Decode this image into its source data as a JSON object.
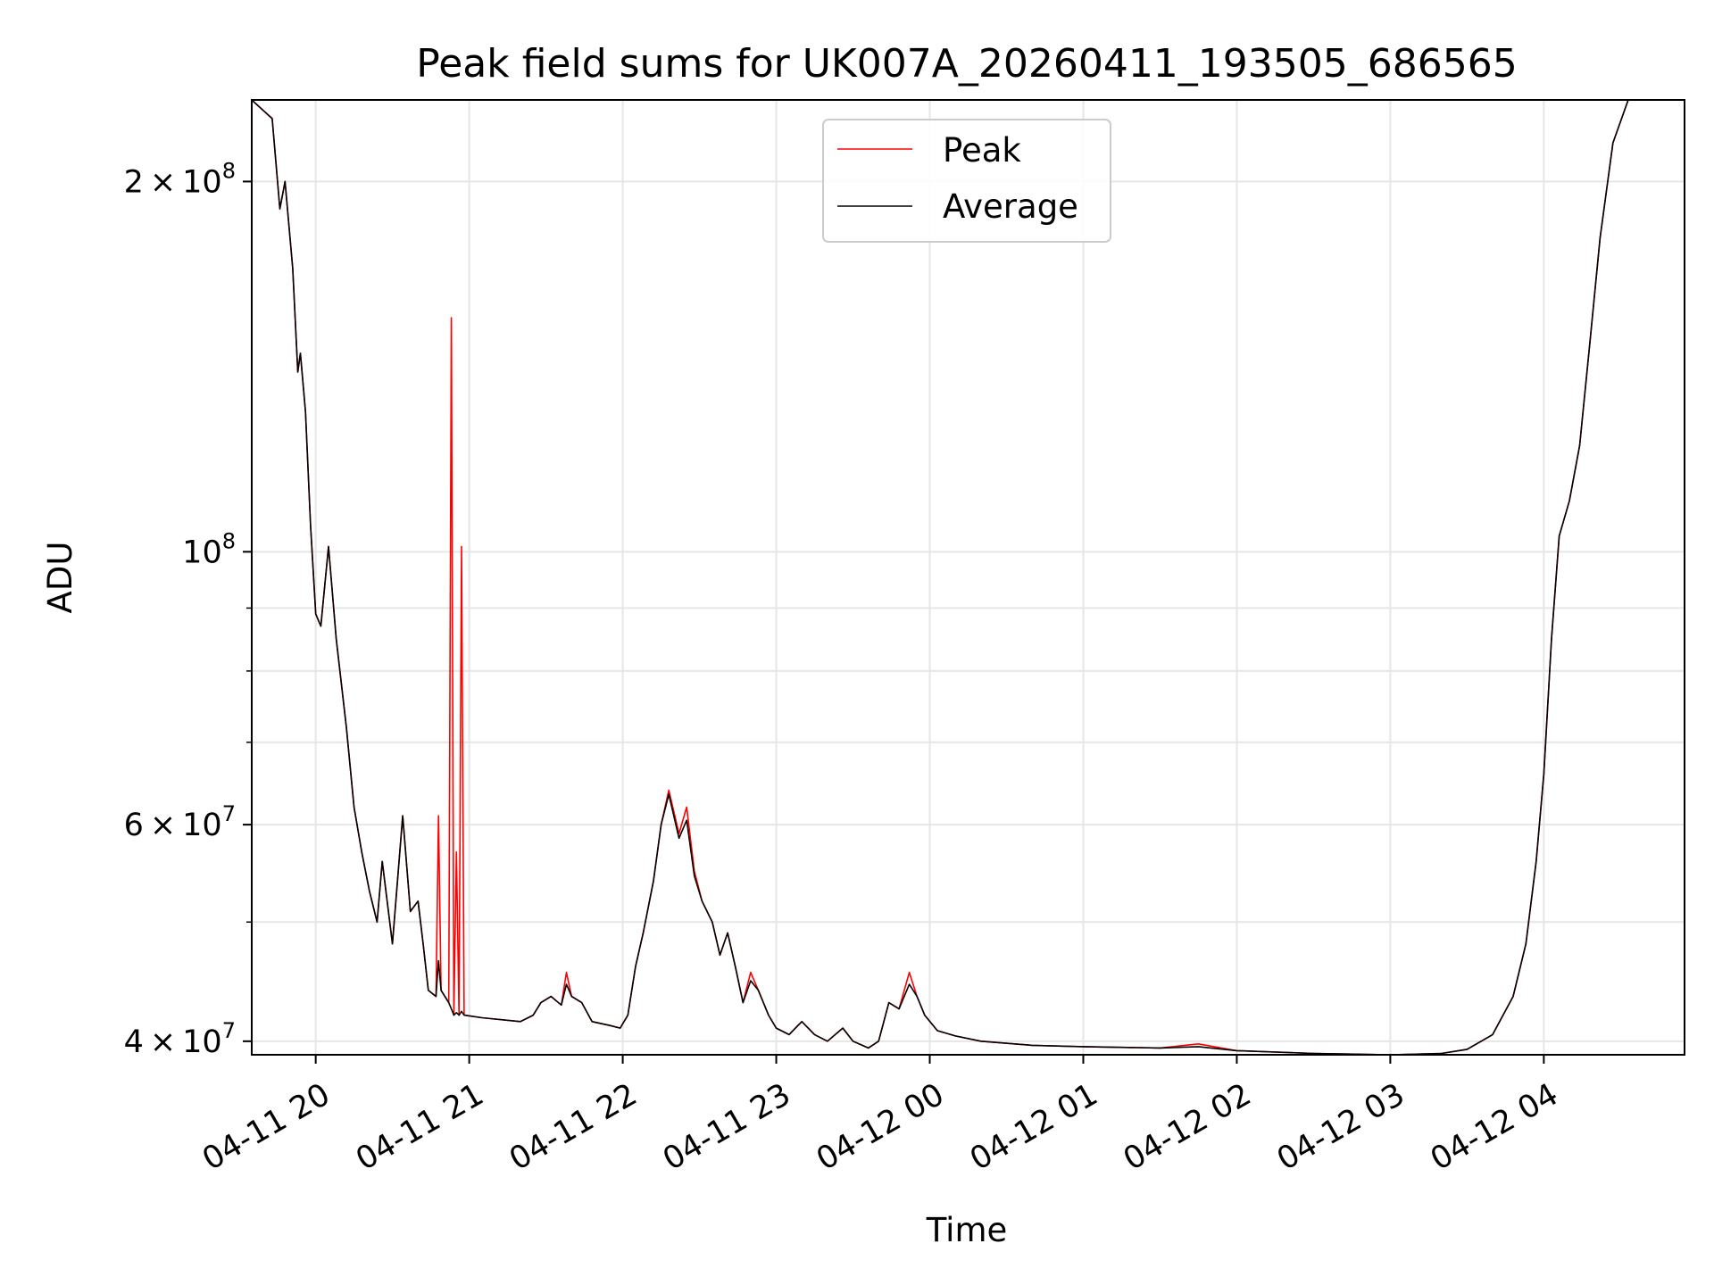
{
  "chart_data": {
    "type": "line",
    "title": "Peak field sums for UK007A_20260411_193505_686565",
    "xlabel": "Time",
    "ylabel": "ADU",
    "y_scale": "log",
    "xlim": [
      "2026-04-11 19:35",
      "2026-04-12 04:55"
    ],
    "ylim": [
      39000000,
      233000000
    ],
    "grid": true,
    "legend_position": "upper center",
    "x_ticks": [
      {
        "t": "2026-04-11 20:00",
        "label": "04-11 20"
      },
      {
        "t": "2026-04-11 21:00",
        "label": "04-11 21"
      },
      {
        "t": "2026-04-11 22:00",
        "label": "04-11 22"
      },
      {
        "t": "2026-04-11 23:00",
        "label": "04-11 23"
      },
      {
        "t": "2026-04-12 00:00",
        "label": "04-12 00"
      },
      {
        "t": "2026-04-12 01:00",
        "label": "04-12 01"
      },
      {
        "t": "2026-04-12 02:00",
        "label": "04-12 02"
      },
      {
        "t": "2026-04-12 03:00",
        "label": "04-12 03"
      },
      {
        "t": "2026-04-12 04:00",
        "label": "04-12 04"
      }
    ],
    "y_major_ticks": [
      {
        "value": 40000000,
        "mantissa": "4",
        "exponent": "7"
      },
      {
        "value": 60000000,
        "mantissa": "6",
        "exponent": "7"
      },
      {
        "value": 100000000,
        "mantissa": "",
        "exponent": "8"
      },
      {
        "value": 200000000,
        "mantissa": "2",
        "exponent": "8"
      }
    ],
    "y_minor_ticks": [
      50000000,
      70000000,
      80000000,
      90000000
    ],
    "series": [
      {
        "name": "Peak",
        "color": "#ff0000",
        "points": [
          [
            "2026-04-11 19:35",
            233000000
          ],
          [
            "2026-04-11 19:43",
            225000000
          ],
          [
            "2026-04-11 19:46",
            190000000
          ],
          [
            "2026-04-11 19:48",
            200000000
          ],
          [
            "2026-04-11 19:51",
            170000000
          ],
          [
            "2026-04-11 19:53",
            140000000
          ],
          [
            "2026-04-11 19:54",
            145000000
          ],
          [
            "2026-04-11 19:56",
            130000000
          ],
          [
            "2026-04-11 19:58",
            105000000
          ],
          [
            "2026-04-11 20:00",
            89000000
          ],
          [
            "2026-04-11 20:02",
            87000000
          ],
          [
            "2026-04-11 20:05",
            101000000
          ],
          [
            "2026-04-11 20:08",
            85000000
          ],
          [
            "2026-04-11 20:12",
            72000000
          ],
          [
            "2026-04-11 20:15",
            62000000
          ],
          [
            "2026-04-11 20:18",
            57000000
          ],
          [
            "2026-04-11 20:21",
            53000000
          ],
          [
            "2026-04-11 20:24",
            50000000
          ],
          [
            "2026-04-11 20:26",
            56000000
          ],
          [
            "2026-04-11 20:30",
            48000000
          ],
          [
            "2026-04-11 20:34",
            61000000
          ],
          [
            "2026-04-11 20:37",
            51000000
          ],
          [
            "2026-04-11 20:40",
            52000000
          ],
          [
            "2026-04-11 20:42",
            48000000
          ],
          [
            "2026-04-11 20:44",
            44000000
          ],
          [
            "2026-04-11 20:47",
            43500000
          ],
          [
            "2026-04-11 20:48",
            61000000
          ],
          [
            "2026-04-11 20:49",
            44000000
          ],
          [
            "2026-04-11 20:52",
            43000000
          ],
          [
            "2026-04-11 20:53",
            155000000
          ],
          [
            "2026-04-11 20:54",
            42000000
          ],
          [
            "2026-04-11 20:55",
            57000000
          ],
          [
            "2026-04-11 20:56",
            42000000
          ],
          [
            "2026-04-11 20:57",
            101000000
          ],
          [
            "2026-04-11 20:58",
            42000000
          ],
          [
            "2026-04-11 21:05",
            41800000
          ],
          [
            "2026-04-11 21:20",
            41500000
          ],
          [
            "2026-04-11 21:25",
            42000000
          ],
          [
            "2026-04-11 21:28",
            43000000
          ],
          [
            "2026-04-11 21:32",
            43500000
          ],
          [
            "2026-04-11 21:36",
            42800000
          ],
          [
            "2026-04-11 21:38",
            45500000
          ],
          [
            "2026-04-11 21:40",
            43500000
          ],
          [
            "2026-04-11 21:44",
            43000000
          ],
          [
            "2026-04-11 21:48",
            41500000
          ],
          [
            "2026-04-11 21:55",
            41200000
          ],
          [
            "2026-04-11 21:59",
            41000000
          ],
          [
            "2026-04-11 22:02",
            42000000
          ],
          [
            "2026-04-11 22:05",
            46000000
          ],
          [
            "2026-04-11 22:08",
            49000000
          ],
          [
            "2026-04-11 22:12",
            54000000
          ],
          [
            "2026-04-11 22:15",
            60000000
          ],
          [
            "2026-04-11 22:18",
            64000000
          ],
          [
            "2026-04-11 22:22",
            59000000
          ],
          [
            "2026-04-11 22:25",
            62000000
          ],
          [
            "2026-04-11 22:28",
            55000000
          ],
          [
            "2026-04-11 22:31",
            52000000
          ],
          [
            "2026-04-11 22:35",
            50000000
          ],
          [
            "2026-04-11 22:38",
            47000000
          ],
          [
            "2026-04-11 22:41",
            49000000
          ],
          [
            "2026-04-11 22:44",
            46000000
          ],
          [
            "2026-04-11 22:47",
            43000000
          ],
          [
            "2026-04-11 22:50",
            45500000
          ],
          [
            "2026-04-11 22:53",
            44000000
          ],
          [
            "2026-04-11 22:57",
            42000000
          ],
          [
            "2026-04-11 23:00",
            41000000
          ],
          [
            "2026-04-11 23:05",
            40500000
          ],
          [
            "2026-04-11 23:10",
            41500000
          ],
          [
            "2026-04-11 23:15",
            40500000
          ],
          [
            "2026-04-11 23:20",
            40000000
          ],
          [
            "2026-04-11 23:26",
            41000000
          ],
          [
            "2026-04-11 23:30",
            40000000
          ],
          [
            "2026-04-11 23:36",
            39500000
          ],
          [
            "2026-04-11 23:40",
            40000000
          ],
          [
            "2026-04-11 23:44",
            43000000
          ],
          [
            "2026-04-11 23:48",
            42500000
          ],
          [
            "2026-04-11 23:52",
            45500000
          ],
          [
            "2026-04-11 23:55",
            43500000
          ],
          [
            "2026-04-11 23:58",
            42000000
          ],
          [
            "2026-04-12 00:03",
            40800000
          ],
          [
            "2026-04-12 00:10",
            40400000
          ],
          [
            "2026-04-12 00:20",
            40000000
          ],
          [
            "2026-04-12 00:40",
            39700000
          ],
          [
            "2026-04-12 01:00",
            39600000
          ],
          [
            "2026-04-12 01:30",
            39500000
          ],
          [
            "2026-04-12 01:45",
            39800000
          ],
          [
            "2026-04-12 02:00",
            39300000
          ],
          [
            "2026-04-12 02:30",
            39100000
          ],
          [
            "2026-04-12 03:00",
            39000000
          ],
          [
            "2026-04-12 03:20",
            39100000
          ],
          [
            "2026-04-12 03:30",
            39400000
          ],
          [
            "2026-04-12 03:40",
            40500000
          ],
          [
            "2026-04-12 03:48",
            43500000
          ],
          [
            "2026-04-12 03:53",
            48000000
          ],
          [
            "2026-04-12 03:57",
            56000000
          ],
          [
            "2026-04-12 04:00",
            66000000
          ],
          [
            "2026-04-12 04:03",
            85000000
          ],
          [
            "2026-04-12 04:06",
            103000000
          ],
          [
            "2026-04-12 04:10",
            110000000
          ],
          [
            "2026-04-12 04:14",
            122000000
          ],
          [
            "2026-04-12 04:18",
            148000000
          ],
          [
            "2026-04-12 04:22",
            180000000
          ],
          [
            "2026-04-12 04:27",
            215000000
          ],
          [
            "2026-04-12 04:33",
            233000000
          ],
          [
            "2026-04-12 04:55",
            233000000
          ]
        ]
      },
      {
        "name": "Average",
        "color": "#000000",
        "points": [
          [
            "2026-04-11 19:35",
            233000000
          ],
          [
            "2026-04-11 19:43",
            225000000
          ],
          [
            "2026-04-11 19:46",
            190000000
          ],
          [
            "2026-04-11 19:48",
            200000000
          ],
          [
            "2026-04-11 19:51",
            170000000
          ],
          [
            "2026-04-11 19:53",
            140000000
          ],
          [
            "2026-04-11 19:54",
            145000000
          ],
          [
            "2026-04-11 19:56",
            130000000
          ],
          [
            "2026-04-11 19:58",
            105000000
          ],
          [
            "2026-04-11 20:00",
            89000000
          ],
          [
            "2026-04-11 20:02",
            87000000
          ],
          [
            "2026-04-11 20:05",
            101000000
          ],
          [
            "2026-04-11 20:08",
            85000000
          ],
          [
            "2026-04-11 20:12",
            72000000
          ],
          [
            "2026-04-11 20:15",
            62000000
          ],
          [
            "2026-04-11 20:18",
            57000000
          ],
          [
            "2026-04-11 20:21",
            53000000
          ],
          [
            "2026-04-11 20:24",
            50000000
          ],
          [
            "2026-04-11 20:26",
            56000000
          ],
          [
            "2026-04-11 20:30",
            48000000
          ],
          [
            "2026-04-11 20:34",
            61000000
          ],
          [
            "2026-04-11 20:37",
            51000000
          ],
          [
            "2026-04-11 20:40",
            52000000
          ],
          [
            "2026-04-11 20:42",
            48000000
          ],
          [
            "2026-04-11 20:44",
            44000000
          ],
          [
            "2026-04-11 20:47",
            43500000
          ],
          [
            "2026-04-11 20:48",
            46500000
          ],
          [
            "2026-04-11 20:49",
            44000000
          ],
          [
            "2026-04-11 20:52",
            43000000
          ],
          [
            "2026-04-11 20:53",
            42500000
          ],
          [
            "2026-04-11 20:54",
            42000000
          ],
          [
            "2026-04-11 20:55",
            42200000
          ],
          [
            "2026-04-11 20:56",
            42000000
          ],
          [
            "2026-04-11 20:57",
            42300000
          ],
          [
            "2026-04-11 20:58",
            42000000
          ],
          [
            "2026-04-11 21:05",
            41800000
          ],
          [
            "2026-04-11 21:20",
            41500000
          ],
          [
            "2026-04-11 21:25",
            42000000
          ],
          [
            "2026-04-11 21:28",
            43000000
          ],
          [
            "2026-04-11 21:32",
            43500000
          ],
          [
            "2026-04-11 21:36",
            42800000
          ],
          [
            "2026-04-11 21:38",
            44500000
          ],
          [
            "2026-04-11 21:40",
            43500000
          ],
          [
            "2026-04-11 21:44",
            43000000
          ],
          [
            "2026-04-11 21:48",
            41500000
          ],
          [
            "2026-04-11 21:55",
            41200000
          ],
          [
            "2026-04-11 21:59",
            41000000
          ],
          [
            "2026-04-11 22:02",
            42000000
          ],
          [
            "2026-04-11 22:05",
            46000000
          ],
          [
            "2026-04-11 22:08",
            49000000
          ],
          [
            "2026-04-11 22:12",
            54000000
          ],
          [
            "2026-04-11 22:15",
            60000000
          ],
          [
            "2026-04-11 22:18",
            63500000
          ],
          [
            "2026-04-11 22:22",
            58500000
          ],
          [
            "2026-04-11 22:25",
            60500000
          ],
          [
            "2026-04-11 22:28",
            54500000
          ],
          [
            "2026-04-11 22:31",
            52000000
          ],
          [
            "2026-04-11 22:35",
            50000000
          ],
          [
            "2026-04-11 22:38",
            47000000
          ],
          [
            "2026-04-11 22:41",
            49000000
          ],
          [
            "2026-04-11 22:44",
            46000000
          ],
          [
            "2026-04-11 22:47",
            43000000
          ],
          [
            "2026-04-11 22:50",
            44800000
          ],
          [
            "2026-04-11 22:53",
            44000000
          ],
          [
            "2026-04-11 22:57",
            42000000
          ],
          [
            "2026-04-11 23:00",
            41000000
          ],
          [
            "2026-04-11 23:05",
            40500000
          ],
          [
            "2026-04-11 23:10",
            41500000
          ],
          [
            "2026-04-11 23:15",
            40500000
          ],
          [
            "2026-04-11 23:20",
            40000000
          ],
          [
            "2026-04-11 23:26",
            41000000
          ],
          [
            "2026-04-11 23:30",
            40000000
          ],
          [
            "2026-04-11 23:36",
            39500000
          ],
          [
            "2026-04-11 23:40",
            40000000
          ],
          [
            "2026-04-11 23:44",
            43000000
          ],
          [
            "2026-04-11 23:48",
            42500000
          ],
          [
            "2026-04-11 23:52",
            44500000
          ],
          [
            "2026-04-11 23:55",
            43500000
          ],
          [
            "2026-04-11 23:58",
            42000000
          ],
          [
            "2026-04-12 00:03",
            40800000
          ],
          [
            "2026-04-12 00:10",
            40400000
          ],
          [
            "2026-04-12 00:20",
            40000000
          ],
          [
            "2026-04-12 00:40",
            39700000
          ],
          [
            "2026-04-12 01:00",
            39600000
          ],
          [
            "2026-04-12 01:30",
            39500000
          ],
          [
            "2026-04-12 01:45",
            39600000
          ],
          [
            "2026-04-12 02:00",
            39300000
          ],
          [
            "2026-04-12 02:30",
            39100000
          ],
          [
            "2026-04-12 03:00",
            39000000
          ],
          [
            "2026-04-12 03:20",
            39100000
          ],
          [
            "2026-04-12 03:30",
            39400000
          ],
          [
            "2026-04-12 03:40",
            40500000
          ],
          [
            "2026-04-12 03:48",
            43500000
          ],
          [
            "2026-04-12 03:53",
            48000000
          ],
          [
            "2026-04-12 03:57",
            56000000
          ],
          [
            "2026-04-12 04:00",
            66000000
          ],
          [
            "2026-04-12 04:03",
            85000000
          ],
          [
            "2026-04-12 04:06",
            103000000
          ],
          [
            "2026-04-12 04:10",
            110000000
          ],
          [
            "2026-04-12 04:14",
            122000000
          ],
          [
            "2026-04-12 04:18",
            148000000
          ],
          [
            "2026-04-12 04:22",
            180000000
          ],
          [
            "2026-04-12 04:27",
            215000000
          ],
          [
            "2026-04-12 04:33",
            233000000
          ],
          [
            "2026-04-12 04:55",
            233000000
          ]
        ]
      }
    ]
  }
}
